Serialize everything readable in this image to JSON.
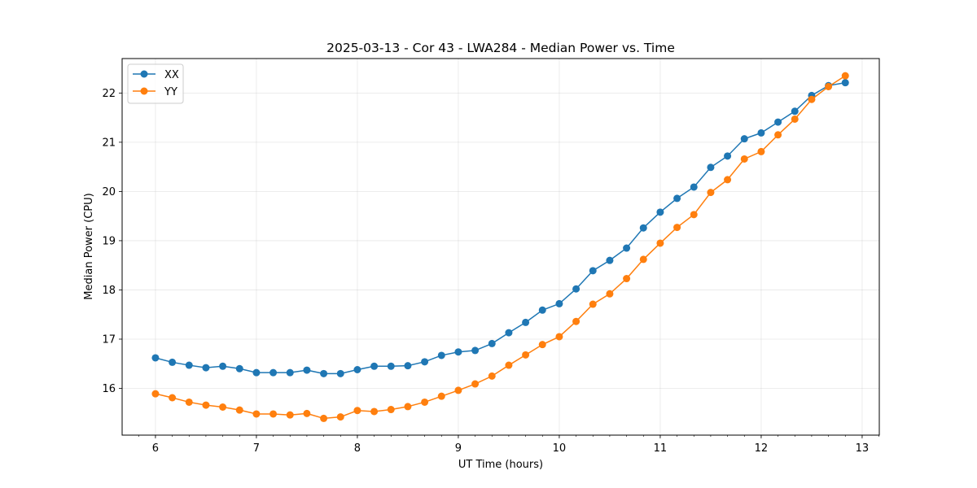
{
  "chart_data": {
    "type": "line",
    "title": "2025-03-13 - Cor 43 - LWA284 - Median Power vs. Time",
    "xlabel": "UT Time (hours)",
    "ylabel": "Median Power (CPU)",
    "xlim": [
      5.67,
      13.17
    ],
    "ylim": [
      15.05,
      22.7
    ],
    "x_ticks": [
      6,
      7,
      8,
      9,
      10,
      11,
      12,
      13
    ],
    "y_ticks": [
      16,
      17,
      18,
      19,
      20,
      21,
      22
    ],
    "grid": true,
    "legend_position": "top-left",
    "x": [
      6.0,
      6.1667,
      6.3333,
      6.5,
      6.6667,
      6.8333,
      7.0,
      7.1667,
      7.3333,
      7.5,
      7.6667,
      7.8333,
      8.0,
      8.1667,
      8.3333,
      8.5,
      8.6667,
      8.8333,
      9.0,
      9.1667,
      9.3333,
      9.5,
      9.6667,
      9.8333,
      10.0,
      10.1667,
      10.3333,
      10.5,
      10.6667,
      10.8333,
      11.0,
      11.1667,
      11.3333,
      11.5,
      11.6667,
      11.8333,
      12.0,
      12.1667,
      12.3333,
      12.5,
      12.6667,
      12.8333
    ],
    "series": [
      {
        "name": "XX",
        "color": "#1f77b4",
        "values": [
          16.62,
          16.53,
          16.47,
          16.42,
          16.45,
          16.4,
          16.32,
          16.32,
          16.32,
          16.37,
          16.3,
          16.3,
          16.38,
          16.45,
          16.45,
          16.46,
          16.54,
          16.67,
          16.74,
          16.77,
          16.91,
          17.13,
          17.34,
          17.59,
          17.72,
          18.02,
          18.39,
          18.6,
          18.85,
          19.26,
          19.58,
          19.86,
          20.09,
          20.49,
          20.72,
          21.07,
          21.19,
          21.41,
          21.63,
          21.95,
          22.15,
          22.21
        ]
      },
      {
        "name": "YY",
        "color": "#ff7f0e",
        "values": [
          15.89,
          15.81,
          15.72,
          15.66,
          15.62,
          15.56,
          15.48,
          15.48,
          15.46,
          15.49,
          15.39,
          15.42,
          15.55,
          15.53,
          15.57,
          15.63,
          15.72,
          15.84,
          15.96,
          16.09,
          16.25,
          16.47,
          16.68,
          16.89,
          17.05,
          17.36,
          17.71,
          17.92,
          18.23,
          18.62,
          18.95,
          19.27,
          19.53,
          19.98,
          20.24,
          20.66,
          20.81,
          21.15,
          21.47,
          21.87,
          22.13,
          22.35
        ]
      }
    ]
  }
}
